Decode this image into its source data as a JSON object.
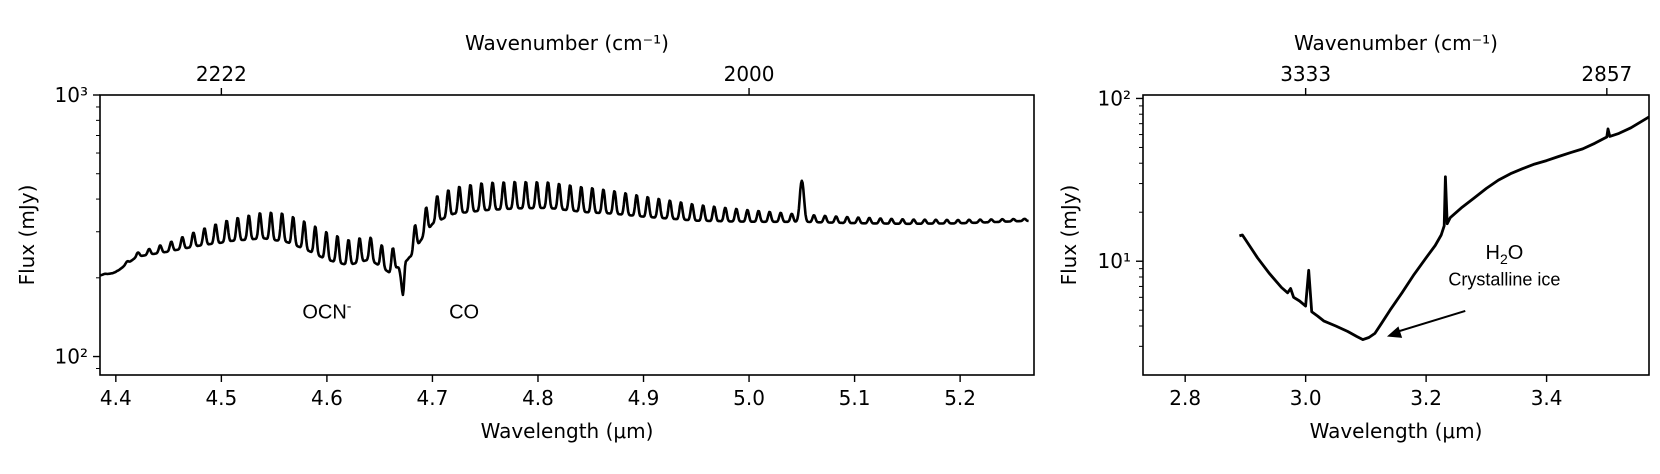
{
  "chart_data": [
    {
      "type": "line",
      "xlabel": "Wavelength (μm)",
      "ylabel": "Flux (mJy)",
      "top_xlabel": "Wavenumber (cm⁻¹)",
      "xlim": [
        4.385,
        5.27
      ],
      "ylim": [
        85,
        1000
      ],
      "yscale": "log",
      "x_ticks": [
        4.4,
        4.5,
        4.6,
        4.7,
        4.8,
        4.9,
        5.0,
        5.1,
        5.2
      ],
      "y_ticks": [
        {
          "value": 100,
          "label": "10²"
        },
        {
          "value": 1000,
          "label": "10³"
        }
      ],
      "top_ticks": [
        {
          "wavenumber": 2222,
          "x": 4.5
        },
        {
          "wavenumber": 2000,
          "x": 5.0
        }
      ],
      "annotations": [
        {
          "text": "OCN",
          "sup": "-",
          "x": 4.6,
          "y": 140
        },
        {
          "text": "CO",
          "x": 4.73,
          "y": 140
        }
      ],
      "series": [
        {
          "color": "#000000",
          "continuum": [
            [
              4.385,
              205
            ],
            [
              4.4,
              210
            ],
            [
              4.42,
              245
            ],
            [
              4.45,
              262
            ],
            [
              4.48,
              285
            ],
            [
              4.51,
              305
            ],
            [
              4.54,
              318
            ],
            [
              4.56,
              312
            ],
            [
              4.58,
              290
            ],
            [
              4.6,
              265
            ],
            [
              4.62,
              250
            ],
            [
              4.64,
              260
            ],
            [
              4.66,
              230
            ],
            [
              4.68,
              270
            ],
            [
              4.7,
              360
            ],
            [
              4.72,
              395
            ],
            [
              4.75,
              410
            ],
            [
              4.78,
              415
            ],
            [
              4.81,
              415
            ],
            [
              4.84,
              400
            ],
            [
              4.87,
              390
            ],
            [
              4.9,
              375
            ],
            [
              4.95,
              355
            ],
            [
              5.0,
              345
            ],
            [
              5.05,
              338
            ],
            [
              5.1,
              332
            ],
            [
              5.15,
              328
            ],
            [
              5.2,
              328
            ],
            [
              5.26,
              333
            ]
          ],
          "modulation": [
            [
              4.4,
              0.01
            ],
            [
              4.45,
              0.12
            ],
            [
              4.5,
              0.28
            ],
            [
              4.55,
              0.38
            ],
            [
              4.6,
              0.38
            ],
            [
              4.65,
              0.3
            ],
            [
              4.7,
              0.35
            ],
            [
              4.75,
              0.38
            ],
            [
              4.85,
              0.34
            ],
            [
              4.95,
              0.22
            ],
            [
              5.05,
              0.1
            ],
            [
              5.15,
              0.06
            ],
            [
              5.26,
              0.03
            ]
          ],
          "line_spacing": 0.0105,
          "features": [
            [
              4.672,
              172
            ],
            [
              5.05,
              470
            ]
          ]
        }
      ]
    },
    {
      "type": "line",
      "xlabel": "Wavelength (μm)",
      "ylabel": "Flux (mJy)",
      "top_xlabel": "Wavenumber (cm⁻¹)",
      "xlim": [
        2.73,
        3.57
      ],
      "ylim": [
        2.0,
        105
      ],
      "yscale": "log",
      "x_ticks": [
        2.8,
        3.0,
        3.2,
        3.4
      ],
      "y_ticks": [
        {
          "value": 10,
          "label": "10¹"
        },
        {
          "value": 100,
          "label": "10²"
        }
      ],
      "top_ticks": [
        {
          "wavenumber": 3333,
          "x": 3.0
        },
        {
          "wavenumber": 2857,
          "x": 3.5
        }
      ],
      "annotations": [
        {
          "text": "H",
          "sub": "2",
          "tail": "O",
          "x": 3.33,
          "y": 10.3
        },
        {
          "text": "Crystalline ice",
          "x": 3.33,
          "y": 7.1
        }
      ],
      "arrow": {
        "from": [
          3.265,
          4.95
        ],
        "to": [
          3.135,
          3.45
        ]
      },
      "series": [
        {
          "color": "#000000",
          "points": [
            [
              2.89,
              14.3
            ],
            [
              2.895,
              14.5
            ],
            [
              2.9,
              13.6
            ],
            [
              2.92,
              10.5
            ],
            [
              2.94,
              8.4
            ],
            [
              2.96,
              6.9
            ],
            [
              2.97,
              6.4
            ],
            [
              2.975,
              6.8
            ],
            [
              2.98,
              6.0
            ],
            [
              2.99,
              5.7
            ],
            [
              3.0,
              5.3
            ],
            [
              3.005,
              8.8
            ],
            [
              3.01,
              4.9
            ],
            [
              3.02,
              4.6
            ],
            [
              3.03,
              4.3
            ],
            [
              3.05,
              4.0
            ],
            [
              3.07,
              3.7
            ],
            [
              3.085,
              3.45
            ],
            [
              3.095,
              3.3
            ],
            [
              3.105,
              3.4
            ],
            [
              3.115,
              3.6
            ],
            [
              3.125,
              4.1
            ],
            [
              3.14,
              5.0
            ],
            [
              3.16,
              6.4
            ],
            [
              3.18,
              8.3
            ],
            [
              3.2,
              10.5
            ],
            [
              3.215,
              12.5
            ],
            [
              3.225,
              14.5
            ],
            [
              3.23,
              16.5
            ],
            [
              3.232,
              33.0
            ],
            [
              3.235,
              17.0
            ],
            [
              3.24,
              18.5
            ],
            [
              3.26,
              21.5
            ],
            [
              3.28,
              24.5
            ],
            [
              3.3,
              28.0
            ],
            [
              3.32,
              31.5
            ],
            [
              3.34,
              34.5
            ],
            [
              3.36,
              37.0
            ],
            [
              3.38,
              39.5
            ],
            [
              3.4,
              41.5
            ],
            [
              3.42,
              44.0
            ],
            [
              3.44,
              46.5
            ],
            [
              3.46,
              49.0
            ],
            [
              3.48,
              53.0
            ],
            [
              3.5,
              58.0
            ],
            [
              3.502,
              65.0
            ],
            [
              3.505,
              58.5
            ],
            [
              3.52,
              61.0
            ],
            [
              3.54,
              66.0
            ],
            [
              3.57,
              77.0
            ]
          ]
        }
      ]
    }
  ]
}
